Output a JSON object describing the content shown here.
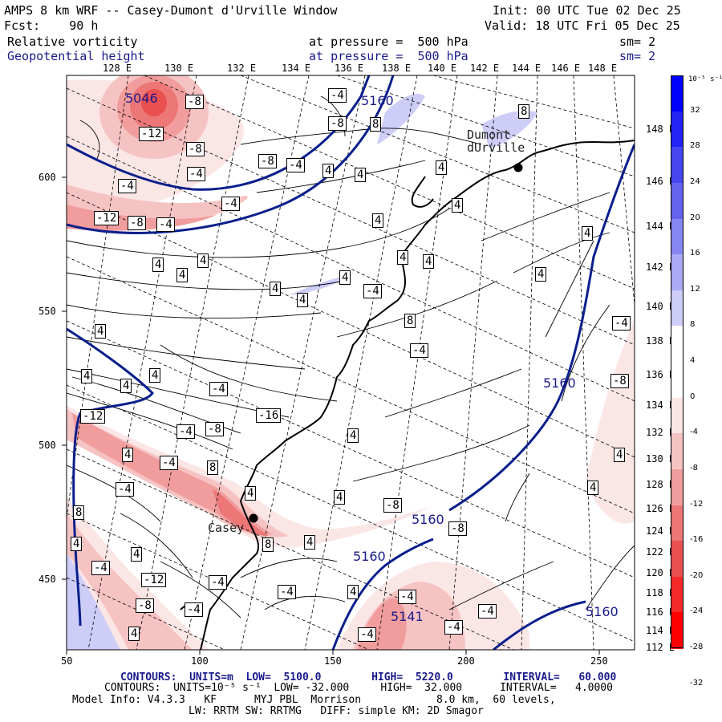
{
  "header": {
    "line1_left": "AMPS 8 km WRF -- Casey-Dumont d'Urville Window",
    "line1_right": "Init: 00 UTC Tue 02 Dec 25",
    "line2_left": "Fcst:    90 h",
    "line2_right": "Valid: 18 UTC Fri 05 Dec 25",
    "line3_left": "Relative vorticity",
    "line3_mid": "at pressure =  500 hPa",
    "line3_right": "sm= 2",
    "line4_left": "Geopotential height",
    "line4_mid": "at pressure =  500 hPa",
    "line4_right": "sm= 2"
  },
  "axes": {
    "top_lon_labels": [
      "128 E",
      "130 E",
      "132 E",
      "134 E",
      "136 E",
      "138 E",
      "140 E",
      "142 E",
      "144 E",
      "146 E",
      "148 E"
    ],
    "right_lon_labels": [
      "148 E",
      "146 E",
      "144 E",
      "142 E",
      "140 E",
      "138 E",
      "136 E",
      "134 E",
      "132 E",
      "130 E",
      "128 E",
      "126 E",
      "124 E",
      "122 E",
      "120 E",
      "118 E",
      "116 E",
      "114 E",
      "112 E"
    ],
    "x_ticks": [
      "50",
      "100",
      "150",
      "200",
      "250"
    ],
    "y_ticks": [
      "600",
      "550",
      "500",
      "450"
    ]
  },
  "colorbar": {
    "unit_label": "10⁻⁵ s⁻¹",
    "ticks": [
      "32",
      "28",
      "24",
      "20",
      "16",
      "12",
      "8",
      "4",
      "0",
      "-4",
      "-8",
      "-12",
      "-16",
      "-20",
      "-24",
      "-28",
      "-32"
    ],
    "colors": [
      "#0000ff",
      "#2323f3",
      "#4646ee",
      "#6464f0",
      "#8787f3",
      "#aaaaf5",
      "#cdcdf8",
      "#ffffff",
      "#ffffff",
      "#fbe6e6",
      "#f6c3c3",
      "#f19d9d",
      "#ed7676",
      "#ea5050",
      "#f42a2a",
      "#ff0000"
    ]
  },
  "places": {
    "dumont": "Dumont\ndUrville",
    "casey": "Casey"
  },
  "height_labels": [
    "5046",
    "5160",
    "5160",
    "5160",
    "5160",
    "5141",
    "5160"
  ],
  "vorticity_labels": [
    "-8",
    "-12",
    "-8",
    "-4",
    "-4",
    "-4",
    "-8",
    "-4",
    "-12",
    "-8",
    "-4",
    "-4",
    "-8",
    "8",
    "4",
    "4",
    "4",
    "4",
    "4",
    "4",
    "4",
    "4",
    "4",
    "8",
    "4",
    "4",
    "4",
    "4",
    "4",
    "4",
    "-4",
    "8",
    "4",
    "-4",
    "4",
    "4",
    "-4",
    "4",
    "-4",
    "-8",
    "-16",
    "-8",
    "-4",
    "-12",
    "4",
    "4",
    "-4",
    "-4",
    "8",
    "4",
    "4",
    "4",
    "-8",
    "4",
    "-8",
    "4",
    "8",
    "8",
    "4",
    "4",
    "-4",
    "-12",
    "-8",
    "-4",
    "-4",
    "-4",
    "4",
    "-4",
    "-4",
    "-4",
    "-4",
    "4"
  ],
  "footer": {
    "line1": "CONTOURS:  UNITS=m  LOW=  5100.0        HIGH=  5220.0        INTERVAL=   60.000",
    "line2": "CONTOURS:  UNITS=10⁻⁵ s⁻¹  LOW= -32.000     HIGH=  32.000      INTERVAL=   4.0000",
    "line3": "Model Info: V4.3.3   KF      MYJ PBL  Morrison            8.0 km,  60 levels,",
    "line4": "LW: RRTM SW: RRTMG   DIFF: simple KM: 2D Smagor"
  }
}
